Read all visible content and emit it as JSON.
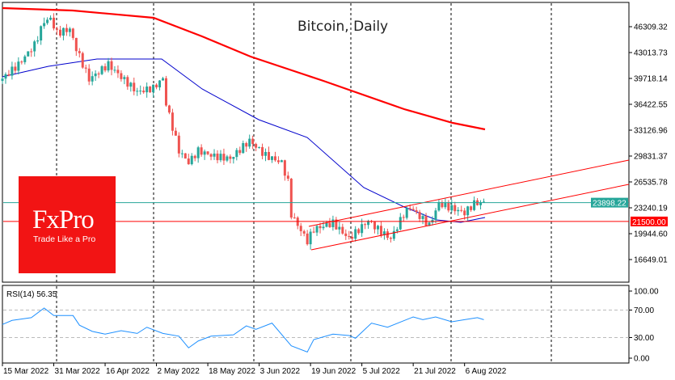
{
  "chart_data": {
    "type": "candlestick",
    "title": "Bitcoin, Daily",
    "price_ticks": [
      "46309.32",
      "43013.73",
      "39718.14",
      "36422.55",
      "33126.96",
      "29831.37",
      "26535.78",
      "23240.19",
      "19944.60",
      "16649.01"
    ],
    "price_tick_values": [
      46309.32,
      43013.73,
      39718.14,
      36422.55,
      33126.96,
      29831.37,
      26535.78,
      23240.19,
      19944.6,
      16649.01
    ],
    "date_labels": [
      "15 Mar 2022",
      "31 Mar 2022",
      "16 Apr 2022",
      "2 May 2022",
      "18 May 2022",
      "3 Jun 2022",
      "19 Jun 2022",
      "5 Jul 2022",
      "21 Jul 2022",
      "6 Aug 2022"
    ],
    "date_label_days": [
      0,
      16,
      32,
      48,
      64,
      80,
      96,
      112,
      128,
      144
    ],
    "current_price": {
      "label": "23898.22",
      "value": 23898.22,
      "color": "#26a69a"
    },
    "level": {
      "label": "21500.00",
      "value": 21500,
      "color": "#ff0000"
    },
    "close_keypoints_day_price": [
      [
        0,
        39700
      ],
      [
        5,
        41500
      ],
      [
        10,
        44000
      ],
      [
        13,
        47000
      ],
      [
        15,
        47300
      ],
      [
        17,
        45500
      ],
      [
        21,
        46000
      ],
      [
        23,
        43500
      ],
      [
        27,
        39600
      ],
      [
        33,
        41500
      ],
      [
        38,
        39500
      ],
      [
        42,
        38000
      ],
      [
        47,
        38500
      ],
      [
        50,
        39700
      ],
      [
        51,
        36500
      ],
      [
        55,
        30500
      ],
      [
        58,
        29000
      ],
      [
        61,
        30500
      ],
      [
        66,
        29800
      ],
      [
        71,
        29500
      ],
      [
        77,
        31800
      ],
      [
        82,
        29900
      ],
      [
        87,
        29000
      ],
      [
        89,
        26500
      ],
      [
        90,
        22400
      ],
      [
        95,
        19000
      ],
      [
        97,
        20500
      ],
      [
        103,
        21300
      ],
      [
        108,
        19300
      ],
      [
        114,
        21600
      ],
      [
        117,
        20500
      ],
      [
        121,
        19300
      ],
      [
        125,
        22400
      ],
      [
        127,
        23300
      ],
      [
        133,
        21000
      ],
      [
        136,
        23800
      ],
      [
        140,
        23200
      ],
      [
        144,
        22600
      ],
      [
        147,
        23800
      ],
      [
        150,
        23900
      ]
    ],
    "rsi": {
      "label": "RSI(14) 56.35",
      "ticks": [
        "100.00",
        "70.00",
        "30.00",
        "0.00"
      ],
      "tick_values": [
        100,
        70,
        30,
        0
      ],
      "points_day_value": [
        [
          0,
          49
        ],
        [
          3,
          55
        ],
        [
          9,
          59
        ],
        [
          13,
          73
        ],
        [
          16,
          62
        ],
        [
          22,
          62
        ],
        [
          24,
          48
        ],
        [
          28,
          39
        ],
        [
          32,
          35
        ],
        [
          37,
          40
        ],
        [
          42,
          36
        ],
        [
          45,
          45
        ],
        [
          50,
          36
        ],
        [
          55,
          32
        ],
        [
          58,
          15
        ],
        [
          61,
          25
        ],
        [
          65,
          32
        ],
        [
          72,
          34
        ],
        [
          76,
          47
        ],
        [
          79,
          42
        ],
        [
          84,
          51
        ],
        [
          90,
          18
        ],
        [
          95,
          9
        ],
        [
          97,
          27
        ],
        [
          103,
          35
        ],
        [
          108,
          33
        ],
        [
          110,
          29
        ],
        [
          115,
          51
        ],
        [
          120,
          45
        ],
        [
          128,
          60
        ],
        [
          131,
          56
        ],
        [
          135,
          60
        ],
        [
          140,
          53
        ],
        [
          144,
          56
        ],
        [
          148,
          59
        ],
        [
          150,
          56
        ]
      ]
    },
    "ma_slow_color": "#ff0000",
    "ma_fast_color": "#0000cc",
    "up_color": "#26a69a",
    "down_color": "#ef5350"
  },
  "logo": {
    "brand": "FxPro",
    "tagline": "Trade Like a Pro"
  }
}
